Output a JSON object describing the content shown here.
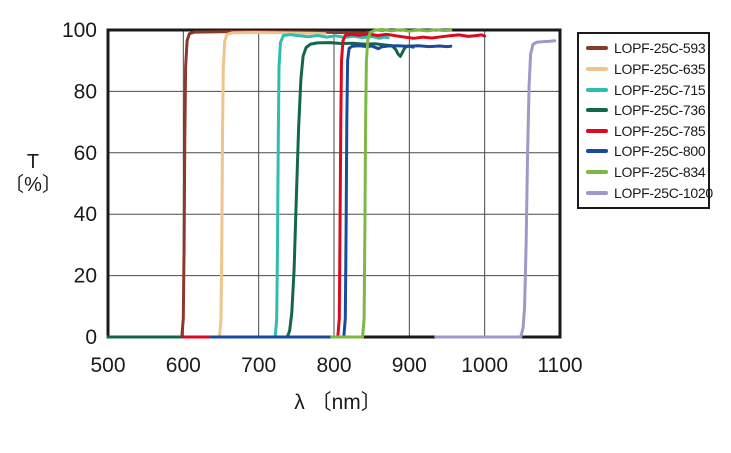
{
  "chart_data": {
    "type": "line",
    "title": "",
    "xlabel": "λ 〔nm〕",
    "ylabel_line1": "T",
    "ylabel_line2": "〔%〕",
    "xlim": [
      500,
      1100
    ],
    "ylim": [
      0,
      100
    ],
    "xticks": [
      500,
      600,
      700,
      800,
      900,
      1000,
      1100
    ],
    "yticks": [
      0,
      20,
      40,
      60,
      80,
      100
    ],
    "grid": true,
    "legend_position": "right-outside",
    "series": [
      {
        "name": "LOPF-25C-593",
        "color": "#8b392b",
        "points": [
          [
            500,
            0
          ],
          [
            598,
            0
          ],
          [
            600,
            6
          ],
          [
            601,
            30
          ],
          [
            602,
            65
          ],
          [
            603,
            88
          ],
          [
            605,
            96.5
          ],
          [
            608,
            98.8
          ],
          [
            615,
            99.3
          ],
          [
            650,
            99.4
          ],
          [
            690,
            99.5
          ],
          [
            730,
            99.4
          ],
          [
            770,
            99.3
          ],
          [
            805,
            99.2
          ],
          [
            830,
            99.1
          ],
          [
            845,
            99.0
          ]
        ]
      },
      {
        "name": "LOPF-25C-635",
        "color": "#edc58d",
        "points": [
          [
            500,
            0
          ],
          [
            648,
            0
          ],
          [
            650,
            6
          ],
          [
            651,
            30
          ],
          [
            652,
            65
          ],
          [
            653,
            88
          ],
          [
            655,
            96.5
          ],
          [
            658,
            98.6
          ],
          [
            665,
            99.1
          ],
          [
            695,
            99.2
          ],
          [
            725,
            99.1
          ],
          [
            755,
            99.0
          ],
          [
            775,
            98.9
          ],
          [
            788,
            98.8
          ]
        ]
      },
      {
        "name": "LOPF-25C-715",
        "color": "#2fbcb3",
        "points": [
          [
            500,
            0
          ],
          [
            722,
            0
          ],
          [
            724,
            6
          ],
          [
            725,
            30
          ],
          [
            726,
            65
          ],
          [
            727,
            88
          ],
          [
            729,
            96
          ],
          [
            733,
            98.2
          ],
          [
            742,
            98.5
          ],
          [
            754,
            98.1
          ],
          [
            766,
            97.8
          ],
          [
            778,
            98.2
          ],
          [
            790,
            97.7
          ],
          [
            802,
            98.1
          ],
          [
            814,
            97.6
          ],
          [
            826,
            98.0
          ],
          [
            838,
            97.5
          ],
          [
            850,
            97.9
          ],
          [
            860,
            97.3
          ],
          [
            867,
            97.7
          ],
          [
            872,
            97.5
          ]
        ]
      },
      {
        "name": "LOPF-25C-736",
        "color": "#136749",
        "points": [
          [
            500,
            0
          ],
          [
            738,
            0
          ],
          [
            741,
            2
          ],
          [
            744,
            8
          ],
          [
            747,
            22
          ],
          [
            750,
            45
          ],
          [
            753,
            68
          ],
          [
            756,
            84
          ],
          [
            759,
            91.5
          ],
          [
            763,
            94.3
          ],
          [
            769,
            95.4
          ],
          [
            778,
            95.8
          ],
          [
            795,
            95.9
          ],
          [
            810,
            95.6
          ],
          [
            825,
            95.7
          ],
          [
            840,
            95.4
          ],
          [
            855,
            95.5
          ],
          [
            868,
            95.1
          ],
          [
            877,
            94.9
          ],
          [
            882,
            93.6
          ],
          [
            885,
            92.2
          ],
          [
            888,
            91.4
          ],
          [
            891,
            92.8
          ],
          [
            894,
            94.2
          ],
          [
            898,
            94.8
          ],
          [
            902,
            94.7
          ],
          [
            905,
            94.4
          ]
        ]
      },
      {
        "name": "LOPF-25C-785",
        "color": "#dc0a1e",
        "points": [
          [
            600,
            0
          ],
          [
            805,
            0
          ],
          [
            807,
            6
          ],
          [
            808,
            35
          ],
          [
            809,
            70
          ],
          [
            810,
            90
          ],
          [
            812,
            96.5
          ],
          [
            815,
            98.2
          ],
          [
            822,
            98.6
          ],
          [
            834,
            98.3
          ],
          [
            846,
            98.7
          ],
          [
            858,
            98.2
          ],
          [
            870,
            98.6
          ],
          [
            882,
            98.1
          ],
          [
            894,
            97.7
          ],
          [
            906,
            97.3
          ],
          [
            918,
            97.7
          ],
          [
            930,
            97.4
          ],
          [
            942,
            97.8
          ],
          [
            954,
            98.1
          ],
          [
            966,
            98.4
          ],
          [
            978,
            97.9
          ],
          [
            990,
            98.2
          ],
          [
            996,
            98.4
          ],
          [
            1000,
            98.0
          ]
        ]
      },
      {
        "name": "LOPF-25C-800",
        "color": "#1a4a9b",
        "points": [
          [
            637,
            0
          ],
          [
            813,
            0
          ],
          [
            815,
            6
          ],
          [
            816,
            35
          ],
          [
            817,
            70
          ],
          [
            818,
            90
          ],
          [
            820,
            94
          ],
          [
            824,
            94.7
          ],
          [
            834,
            94.9
          ],
          [
            844,
            94.6
          ],
          [
            850,
            94.8
          ],
          [
            855,
            94.3
          ],
          [
            859,
            93.9
          ],
          [
            863,
            94.5
          ],
          [
            872,
            94.8
          ],
          [
            884,
            94.9
          ],
          [
            898,
            94.7
          ],
          [
            912,
            94.9
          ],
          [
            926,
            94.6
          ],
          [
            940,
            94.8
          ],
          [
            950,
            94.6
          ],
          [
            955,
            94.7
          ]
        ]
      },
      {
        "name": "LOPF-25C-834",
        "color": "#7cb944",
        "points": [
          [
            797,
            0
          ],
          [
            838,
            0
          ],
          [
            840,
            6
          ],
          [
            841,
            35
          ],
          [
            842,
            70
          ],
          [
            843,
            90
          ],
          [
            845,
            97
          ],
          [
            848,
            99.2
          ],
          [
            854,
            99.9
          ],
          [
            864,
            100.2
          ],
          [
            876,
            99.7
          ],
          [
            888,
            100.1
          ],
          [
            900,
            99.6
          ],
          [
            912,
            100.0
          ],
          [
            924,
            99.7
          ],
          [
            936,
            100.1
          ],
          [
            946,
            99.8
          ],
          [
            955,
            99.9
          ]
        ]
      },
      {
        "name": "LOPF-25C-1020",
        "color": "#a396c8",
        "points": [
          [
            935,
            0
          ],
          [
            1048,
            0
          ],
          [
            1051,
            3
          ],
          [
            1053,
            10
          ],
          [
            1055,
            30
          ],
          [
            1057,
            60
          ],
          [
            1059,
            82
          ],
          [
            1061,
            92
          ],
          [
            1064,
            95.3
          ],
          [
            1069,
            96.0
          ],
          [
            1076,
            96.2
          ],
          [
            1085,
            96.3
          ],
          [
            1093,
            96.5
          ]
        ]
      }
    ]
  },
  "colors": {
    "axis": "#1a1a1a",
    "grid": "#4a4a4a",
    "background": "#ffffff",
    "text": "#1a1a1a"
  }
}
